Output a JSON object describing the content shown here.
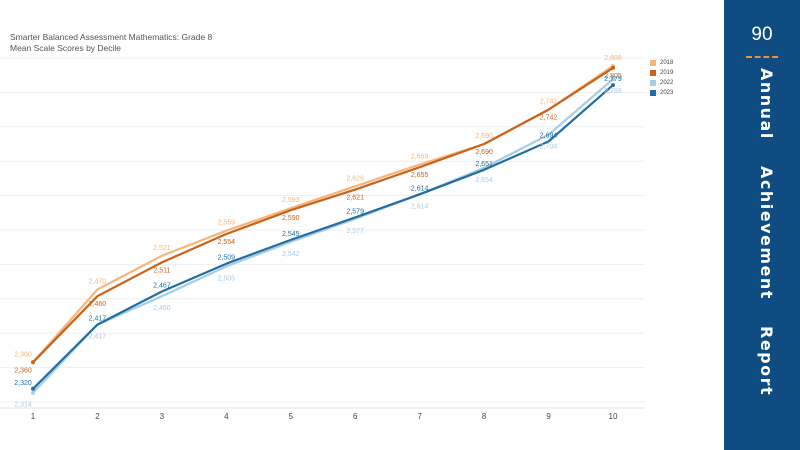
{
  "chart_data": {
    "type": "line",
    "title": "Smarter Balanced Assessment Mathematics: Grade 8",
    "subtitle": "Mean Scale Scores by Decile",
    "x": [
      1,
      2,
      3,
      4,
      5,
      6,
      7,
      8,
      9,
      10
    ],
    "ylim": [
      2300,
      2820
    ],
    "grid": true,
    "legend_position": "top-right",
    "series": [
      {
        "name": "2018",
        "color": "#f7b57a",
        "values": [
          2360,
          2470,
          2521,
          2559,
          2593,
          2626,
          2659,
          2690,
          2742,
          2808
        ],
        "labels": [
          "2,360",
          "2,470",
          "2,521",
          "2,559",
          "2,593",
          "2,626",
          "2,659",
          "2,690",
          "2,742",
          "2,808"
        ]
      },
      {
        "name": "2019",
        "color": "#c9631c",
        "values": [
          2360,
          2460,
          2511,
          2554,
          2590,
          2621,
          2655,
          2690,
          2742,
          2805
        ],
        "labels": [
          "2,360",
          "2,460",
          "2,511",
          "2,554",
          "2,590",
          "2,621",
          "2,655",
          "2,690",
          "2,742",
          "2,805"
        ]
      },
      {
        "name": "2022",
        "color": "#a9cbe6",
        "values": [
          2314,
          2417,
          2460,
          2505,
          2542,
          2577,
          2614,
          2654,
          2704,
          2788
        ],
        "labels": [
          "2,314",
          "2,417",
          "2,460",
          "2,505",
          "2,542",
          "2,577",
          "2,614",
          "2,654",
          "2,704",
          "2,788"
        ]
      },
      {
        "name": "2023",
        "color": "#1f6fa3",
        "values": [
          2320,
          2417,
          2467,
          2509,
          2545,
          2579,
          2614,
          2651,
          2694,
          2779
        ],
        "labels": [
          "2,320",
          "2,417",
          "2,467",
          "2,509",
          "2,545",
          "2,579",
          "2,614",
          "2,651",
          "2,694",
          "2,779"
        ]
      }
    ]
  },
  "side_panel": {
    "page_number": "90",
    "title_words": [
      "Annual",
      "Achievement",
      "Report"
    ],
    "background_color": "#0f4c81",
    "accent_color": "#e8934a"
  }
}
